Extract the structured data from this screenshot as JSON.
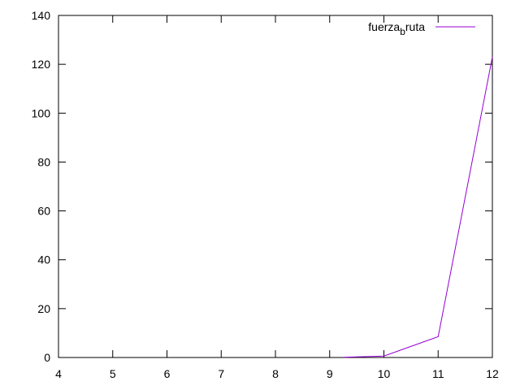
{
  "chart_data": {
    "type": "line",
    "title": "",
    "xlabel": "",
    "ylabel": "",
    "xlim": [
      4,
      12
    ],
    "ylim": [
      0,
      140
    ],
    "xticks": [
      4,
      5,
      6,
      7,
      8,
      9,
      10,
      11,
      12
    ],
    "yticks": [
      0,
      20,
      40,
      60,
      80,
      100,
      120,
      140
    ],
    "grid": false,
    "legend_position": "top-right",
    "series": [
      {
        "name": "fuerza_bruta",
        "name_main": "fuerza",
        "name_sub": "b",
        "name_rest": "ruta",
        "color": "#9400d3",
        "x": [
          9.25,
          10,
          11,
          12
        ],
        "y": [
          0.1,
          0.6,
          8.5,
          123
        ]
      }
    ]
  }
}
